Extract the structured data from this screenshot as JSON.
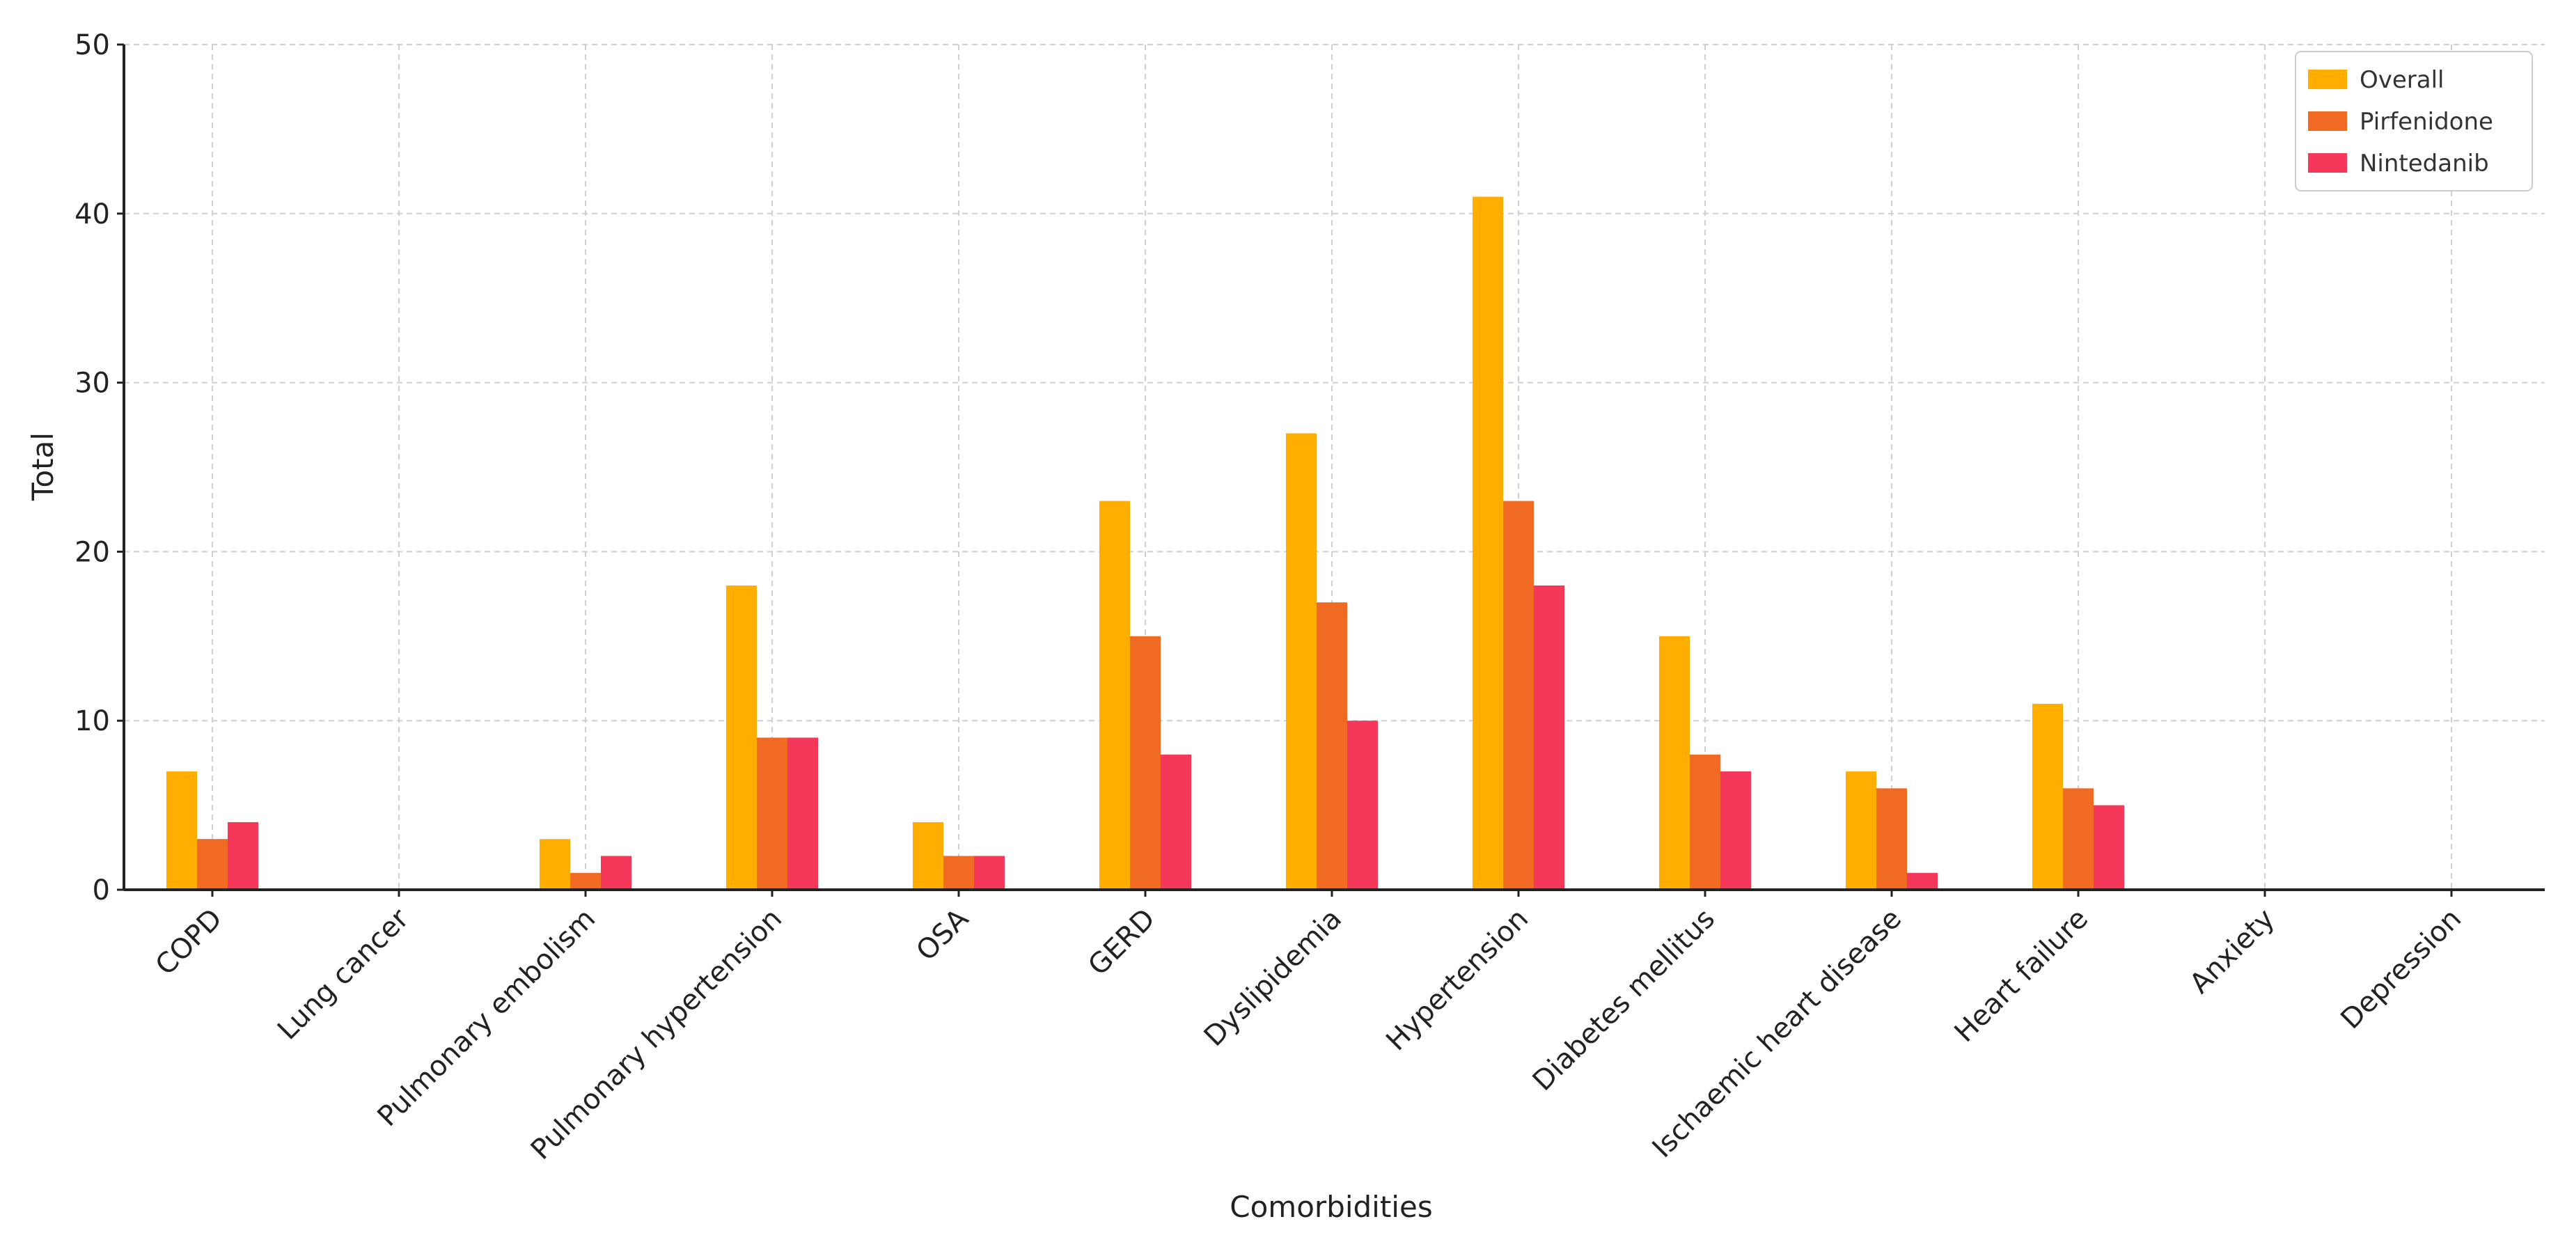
{
  "chart_data": {
    "type": "bar",
    "title": "",
    "xlabel": "Comorbidities",
    "ylabel": "Total",
    "ylim": [
      0,
      50
    ],
    "yticks": [
      0,
      10,
      20,
      30,
      40,
      50
    ],
    "grid": true,
    "legend_position": "top-right",
    "categories": [
      "COPD",
      "Lung cancer",
      "Pulmonary embolism",
      "Pulmonary hypertension",
      "OSA",
      "GERD",
      "Dyslipidemia",
      "Hypertension",
      "Diabetes mellitus",
      "Ischaemic heart disease",
      "Heart failure",
      "Anxiety",
      "Depression"
    ],
    "series": [
      {
        "name": "Overall",
        "color": "#FFAE00",
        "values": [
          7,
          0,
          3,
          18,
          4,
          23,
          27,
          41,
          15,
          7,
          11,
          0,
          0
        ]
      },
      {
        "name": "Pirfenidone",
        "color": "#F06A24",
        "values": [
          3,
          0,
          1,
          9,
          2,
          15,
          17,
          23,
          8,
          6,
          6,
          0,
          0
        ]
      },
      {
        "name": "Nintedanib",
        "color": "#F53859",
        "values": [
          4,
          0,
          2,
          9,
          2,
          8,
          10,
          18,
          7,
          1,
          5,
          0,
          0
        ]
      }
    ]
  }
}
